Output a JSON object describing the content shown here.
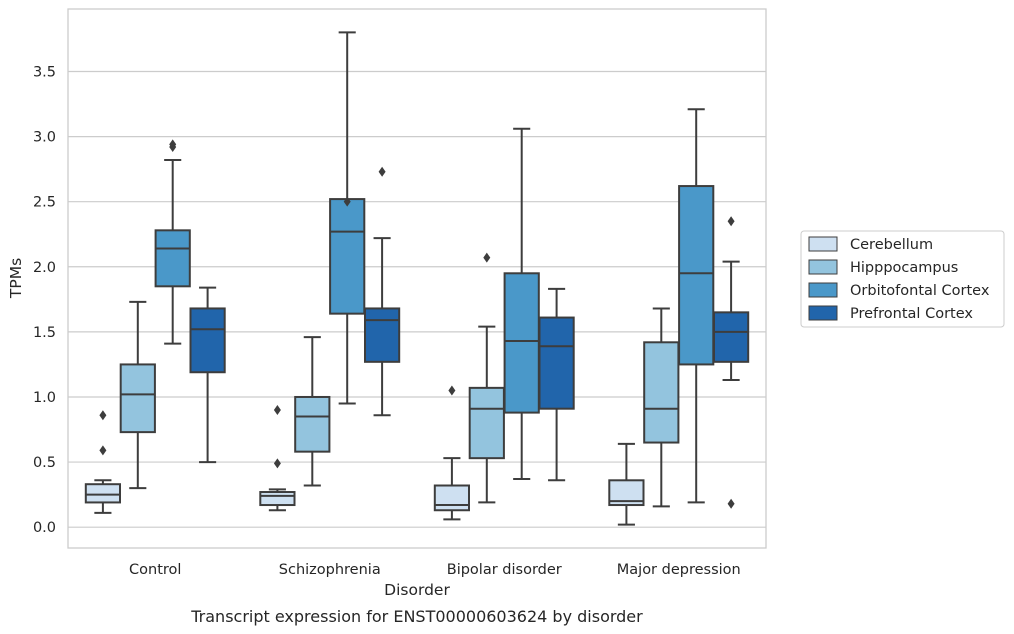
{
  "chart_data": {
    "type": "boxplot",
    "caption": "Transcript expression for ENST00000603624 by disorder",
    "xlabel": "Disorder",
    "ylabel": "TPMs",
    "ylim": [
      -0.16,
      3.98
    ],
    "yticks": [
      0.0,
      0.5,
      1.0,
      1.5,
      2.0,
      2.5,
      3.0,
      3.5
    ],
    "ytick_labels": [
      "0.0",
      "0.5",
      "1.0",
      "1.5",
      "2.0",
      "2.5",
      "3.0",
      "3.5"
    ],
    "grid": "horizontal",
    "legend_placement": "right",
    "categories": [
      "Control",
      "Schizophrenia",
      "Bipolar disorder",
      "Major depression"
    ],
    "series": [
      {
        "name": "Cerebellum",
        "color": "#cee0f1",
        "boxes": [
          {
            "whislo": 0.11,
            "q1": 0.19,
            "med": 0.25,
            "q3": 0.33,
            "whishi": 0.36,
            "fliers": [
              0.59,
              0.86
            ]
          },
          {
            "whislo": 0.13,
            "q1": 0.17,
            "med": 0.24,
            "q3": 0.27,
            "whishi": 0.29,
            "fliers": [
              0.49,
              0.9
            ]
          },
          {
            "whislo": 0.06,
            "q1": 0.13,
            "med": 0.17,
            "q3": 0.32,
            "whishi": 0.53,
            "fliers": [
              1.05
            ]
          },
          {
            "whislo": 0.02,
            "q1": 0.17,
            "med": 0.2,
            "q3": 0.36,
            "whishi": 0.64,
            "fliers": []
          }
        ]
      },
      {
        "name": "Hipppocampus",
        "color": "#93c4de",
        "boxes": [
          {
            "whislo": 0.3,
            "q1": 0.73,
            "med": 1.02,
            "q3": 1.25,
            "whishi": 1.73,
            "fliers": []
          },
          {
            "whislo": 0.32,
            "q1": 0.58,
            "med": 0.85,
            "q3": 1.0,
            "whishi": 1.46,
            "fliers": []
          },
          {
            "whislo": 0.19,
            "q1": 0.53,
            "med": 0.91,
            "q3": 1.07,
            "whishi": 1.54,
            "fliers": [
              2.07
            ]
          },
          {
            "whislo": 0.16,
            "q1": 0.65,
            "med": 0.91,
            "q3": 1.42,
            "whishi": 1.68,
            "fliers": []
          }
        ]
      },
      {
        "name": "Orbitofontal Cortex",
        "color": "#4a98c9",
        "boxes": [
          {
            "whislo": 1.41,
            "q1": 1.85,
            "med": 2.14,
            "q3": 2.28,
            "whishi": 2.82,
            "fliers": [
              2.92,
              2.94
            ]
          },
          {
            "whislo": 0.95,
            "q1": 1.64,
            "med": 2.27,
            "q3": 2.52,
            "whishi": 3.8,
            "fliers": [
              2.5
            ]
          },
          {
            "whislo": 0.37,
            "q1": 0.88,
            "med": 1.43,
            "q3": 1.95,
            "whishi": 3.06,
            "fliers": []
          },
          {
            "whislo": 0.19,
            "q1": 1.25,
            "med": 1.95,
            "q3": 2.62,
            "whishi": 3.21,
            "fliers": []
          }
        ]
      },
      {
        "name": "Prefrontal Cortex",
        "color": "#2165ab",
        "boxes": [
          {
            "whislo": 0.5,
            "q1": 1.19,
            "med": 1.52,
            "q3": 1.68,
            "whishi": 1.84,
            "fliers": []
          },
          {
            "whislo": 0.86,
            "q1": 1.27,
            "med": 1.59,
            "q3": 1.68,
            "whishi": 2.22,
            "fliers": [
              2.73
            ]
          },
          {
            "whislo": 0.36,
            "q1": 0.91,
            "med": 1.39,
            "q3": 1.61,
            "whishi": 1.83,
            "fliers": []
          },
          {
            "whislo": 1.13,
            "q1": 1.27,
            "med": 1.5,
            "q3": 1.65,
            "whishi": 2.04,
            "fliers": [
              2.35,
              0.18
            ]
          }
        ]
      }
    ]
  }
}
